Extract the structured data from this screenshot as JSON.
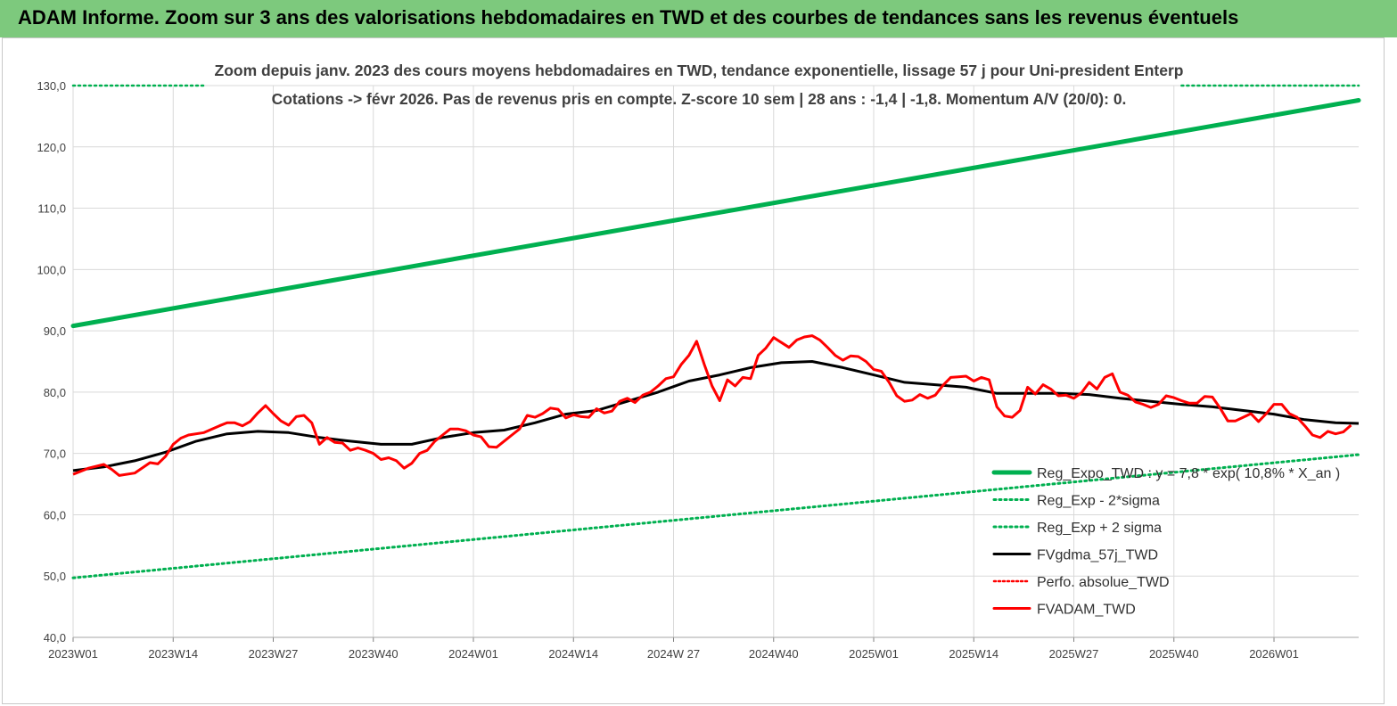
{
  "banner": {
    "title": "ADAM Informe. Zoom sur 3 ans des valorisations hebdomadaires en TWD et des courbes de tendances sans les revenus éventuels"
  },
  "colors": {
    "banner_bg": "#7dc97d",
    "trend": "#00b050",
    "smoothed": "#000000",
    "price": "#ff0000",
    "grid": "#d9d9d9"
  },
  "chart_data": {
    "type": "line",
    "subtitle_line1": "Zoom depuis janv. 2023 des cours moyens hebdomadaires en TWD, tendance exponentielle, lissage 57 j pour Uni-president Enterp",
    "subtitle_line2": "Cotations -> févr 2026.  Pas de revenus pris en compte. Z-score 10 sem  | 28 ans : -1,4  | -1,8. Momentum A/V (20/0): 0.",
    "x_tick_labels": [
      "2023W01",
      "2023W14",
      "2023W27",
      "2023W40",
      "2024W01",
      "2024W14",
      "2024W 27",
      "2024W40",
      "2025W01",
      "2025W14",
      "2025W27",
      "2025W40",
      "2026W01"
    ],
    "x_tick_weeks": [
      0,
      13,
      26,
      39,
      52,
      65,
      78,
      91,
      104,
      117,
      130,
      143,
      156
    ],
    "x_range_weeks": [
      0,
      167
    ],
    "y_ticks": [
      "40,0",
      "50,0",
      "60,0",
      "70,0",
      "80,0",
      "90,0",
      "100,0",
      "110,0",
      "120,0",
      "130,0"
    ],
    "ylim": [
      40,
      130
    ],
    "grid": true,
    "legend_position": "bottom-right",
    "series": [
      {
        "name": "Reg_Expo_TWD : y = 7,8 * exp( 10,8% *  X_an )",
        "style": "thick-solid",
        "start": [
          0,
          90.8
        ],
        "end": [
          167,
          127.6
        ]
      },
      {
        "name": "Reg_Exp - 2*sigma",
        "style": "dotted",
        "start": [
          0,
          49.7
        ],
        "end": [
          167,
          69.8
        ]
      },
      {
        "name": "Reg_Exp + 2 sigma",
        "style": "dotted",
        "visible_segments": [
          [
            0,
            17,
            130.0
          ],
          [
            144,
            167,
            130.0
          ]
        ]
      },
      {
        "name": "FVgdma_57j_TWD",
        "style": "solid",
        "points": [
          [
            0,
            67.2
          ],
          [
            4,
            67.8
          ],
          [
            8,
            68.8
          ],
          [
            12,
            70.2
          ],
          [
            16,
            72.0
          ],
          [
            20,
            73.2
          ],
          [
            24,
            73.6
          ],
          [
            28,
            73.4
          ],
          [
            32,
            72.6
          ],
          [
            36,
            72.0
          ],
          [
            40,
            71.5
          ],
          [
            44,
            71.5
          ],
          [
            48,
            72.6
          ],
          [
            52,
            73.4
          ],
          [
            56,
            73.8
          ],
          [
            60,
            75.0
          ],
          [
            64,
            76.4
          ],
          [
            68,
            77.0
          ],
          [
            72,
            78.5
          ],
          [
            76,
            80.0
          ],
          [
            80,
            81.8
          ],
          [
            84,
            82.8
          ],
          [
            88,
            84.0
          ],
          [
            92,
            84.8
          ],
          [
            96,
            85.0
          ],
          [
            100,
            84.0
          ],
          [
            104,
            82.8
          ],
          [
            108,
            81.6
          ],
          [
            112,
            81.2
          ],
          [
            116,
            80.8
          ],
          [
            120,
            79.8
          ],
          [
            124,
            79.8
          ],
          [
            128,
            79.8
          ],
          [
            132,
            79.6
          ],
          [
            136,
            79.0
          ],
          [
            140,
            78.5
          ],
          [
            144,
            78.0
          ],
          [
            148,
            77.6
          ],
          [
            152,
            77.0
          ],
          [
            156,
            76.4
          ],
          [
            160,
            75.5
          ],
          [
            164,
            75.0
          ],
          [
            167,
            74.9
          ]
        ]
      },
      {
        "name": "Perfo. absolue_TWD",
        "style": "dotted",
        "points": []
      },
      {
        "name": "FVADAM_TWD",
        "style": "solid",
        "points": [
          [
            0,
            66.6
          ],
          [
            2,
            67.6
          ],
          [
            4,
            68.2
          ],
          [
            5,
            67.4
          ],
          [
            6,
            66.4
          ],
          [
            8,
            66.8
          ],
          [
            10,
            68.5
          ],
          [
            11,
            68.3
          ],
          [
            12,
            69.5
          ],
          [
            13,
            71.5
          ],
          [
            14,
            72.5
          ],
          [
            15,
            73.0
          ],
          [
            17,
            73.4
          ],
          [
            19,
            74.5
          ],
          [
            20,
            75.0
          ],
          [
            21,
            75.0
          ],
          [
            22,
            74.5
          ],
          [
            23,
            75.2
          ],
          [
            24,
            76.6
          ],
          [
            25,
            77.8
          ],
          [
            26,
            76.5
          ],
          [
            27,
            75.3
          ],
          [
            28,
            74.6
          ],
          [
            29,
            76.0
          ],
          [
            30,
            76.2
          ],
          [
            31,
            75.0
          ],
          [
            32,
            71.5
          ],
          [
            33,
            72.6
          ],
          [
            34,
            71.8
          ],
          [
            35,
            71.7
          ],
          [
            36,
            70.5
          ],
          [
            37,
            70.9
          ],
          [
            38,
            70.5
          ],
          [
            39,
            70.0
          ],
          [
            40,
            69.0
          ],
          [
            41,
            69.3
          ],
          [
            42,
            68.8
          ],
          [
            43,
            67.6
          ],
          [
            44,
            68.4
          ],
          [
            45,
            70.0
          ],
          [
            46,
            70.5
          ],
          [
            47,
            72.0
          ],
          [
            48,
            73.0
          ],
          [
            49,
            74.0
          ],
          [
            50,
            74.0
          ],
          [
            51,
            73.7
          ],
          [
            52,
            73.0
          ],
          [
            53,
            72.7
          ],
          [
            54,
            71.1
          ],
          [
            55,
            71.0
          ],
          [
            56,
            72.0
          ],
          [
            57,
            73.0
          ],
          [
            58,
            74.0
          ],
          [
            59,
            76.2
          ],
          [
            60,
            75.9
          ],
          [
            61,
            76.5
          ],
          [
            62,
            77.4
          ],
          [
            63,
            77.2
          ],
          [
            64,
            75.8
          ],
          [
            65,
            76.3
          ],
          [
            66,
            76.0
          ],
          [
            67,
            75.9
          ],
          [
            68,
            77.3
          ],
          [
            69,
            76.6
          ],
          [
            70,
            76.9
          ],
          [
            71,
            78.5
          ],
          [
            72,
            79.0
          ],
          [
            73,
            78.3
          ],
          [
            74,
            79.5
          ],
          [
            75,
            80.0
          ],
          [
            76,
            81.0
          ],
          [
            77,
            82.2
          ],
          [
            78,
            82.5
          ],
          [
            79,
            84.5
          ],
          [
            80,
            86.0
          ],
          [
            81,
            88.3
          ],
          [
            82,
            84.5
          ],
          [
            83,
            81.0
          ],
          [
            84,
            78.6
          ],
          [
            85,
            82.0
          ],
          [
            86,
            81.0
          ],
          [
            87,
            82.4
          ],
          [
            88,
            82.2
          ],
          [
            89,
            86.0
          ],
          [
            90,
            87.2
          ],
          [
            91,
            88.9
          ],
          [
            92,
            88.1
          ],
          [
            93,
            87.3
          ],
          [
            94,
            88.5
          ],
          [
            95,
            89.0
          ],
          [
            96,
            89.2
          ],
          [
            97,
            88.5
          ],
          [
            98,
            87.3
          ],
          [
            99,
            86.0
          ],
          [
            100,
            85.2
          ],
          [
            101,
            85.9
          ],
          [
            102,
            85.8
          ],
          [
            103,
            85.0
          ],
          [
            104,
            83.7
          ],
          [
            105,
            83.4
          ],
          [
            106,
            81.6
          ],
          [
            107,
            79.4
          ],
          [
            108,
            78.5
          ],
          [
            109,
            78.7
          ],
          [
            110,
            79.6
          ],
          [
            111,
            79.0
          ],
          [
            112,
            79.5
          ],
          [
            113,
            81.1
          ],
          [
            114,
            82.4
          ],
          [
            115,
            82.5
          ],
          [
            116,
            82.6
          ],
          [
            117,
            81.8
          ],
          [
            118,
            82.4
          ],
          [
            119,
            82.0
          ],
          [
            120,
            77.6
          ],
          [
            121,
            76.1
          ],
          [
            122,
            75.9
          ],
          [
            123,
            77.0
          ],
          [
            124,
            80.8
          ],
          [
            125,
            79.7
          ],
          [
            126,
            81.2
          ],
          [
            127,
            80.5
          ],
          [
            128,
            79.4
          ],
          [
            129,
            79.5
          ],
          [
            130,
            79.0
          ],
          [
            131,
            79.9
          ],
          [
            132,
            81.6
          ],
          [
            133,
            80.5
          ],
          [
            134,
            82.4
          ],
          [
            135,
            83.0
          ],
          [
            136,
            80.0
          ],
          [
            137,
            79.5
          ],
          [
            138,
            78.4
          ],
          [
            139,
            78.0
          ],
          [
            140,
            77.5
          ],
          [
            141,
            78.0
          ],
          [
            142,
            79.4
          ],
          [
            143,
            79.1
          ],
          [
            144,
            78.6
          ],
          [
            145,
            78.2
          ],
          [
            146,
            78.2
          ],
          [
            147,
            79.3
          ],
          [
            148,
            79.2
          ],
          [
            149,
            77.4
          ],
          [
            150,
            75.3
          ],
          [
            151,
            75.3
          ],
          [
            152,
            75.9
          ],
          [
            153,
            76.5
          ],
          [
            154,
            75.2
          ],
          [
            155,
            76.5
          ],
          [
            156,
            78.0
          ],
          [
            157,
            78.0
          ],
          [
            158,
            76.5
          ],
          [
            159,
            75.9
          ],
          [
            160,
            74.5
          ],
          [
            161,
            73.0
          ],
          [
            162,
            72.6
          ],
          [
            163,
            73.6
          ],
          [
            164,
            73.2
          ],
          [
            165,
            73.5
          ],
          [
            166,
            74.6
          ]
        ]
      }
    ]
  }
}
